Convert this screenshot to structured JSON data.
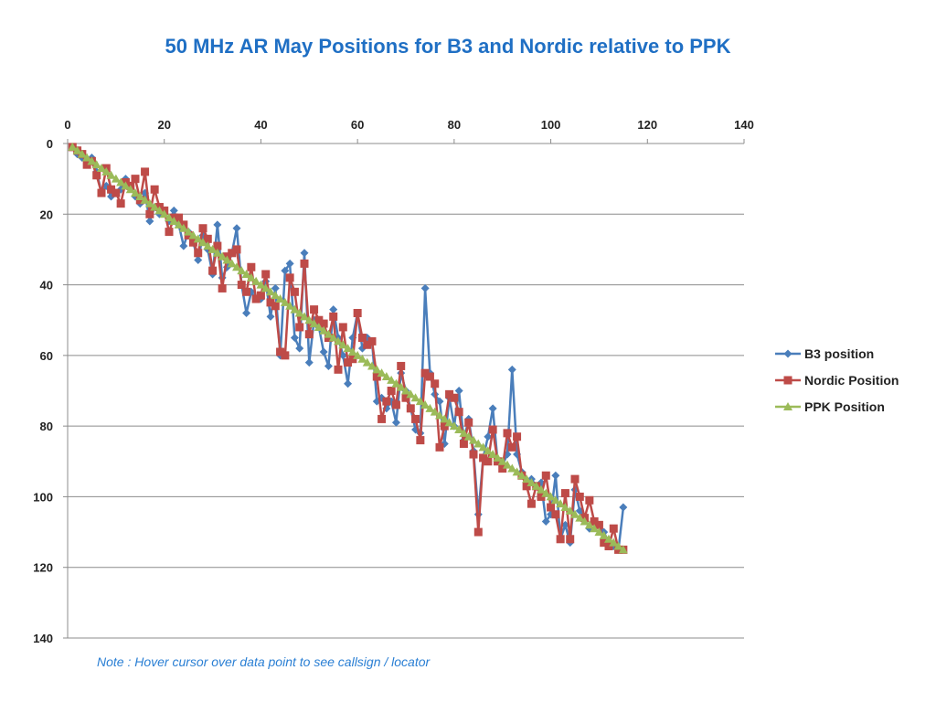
{
  "chart_data": {
    "type": "line",
    "title": "50 MHz AR May Positions for B3 and Nordic relative to PPK",
    "note": "Note : Hover cursor over data point to see callsign / locator",
    "xlabel": "",
    "ylabel": "",
    "xlim": [
      0,
      140
    ],
    "ylim": [
      0,
      140
    ],
    "y_reversed": true,
    "x_axis_position": "top",
    "x_ticks": [
      0,
      20,
      40,
      60,
      80,
      100,
      120,
      140
    ],
    "y_ticks": [
      0,
      20,
      40,
      60,
      80,
      100,
      120,
      140
    ],
    "grid": "horizontal",
    "legend_placement": "right",
    "x": [
      1,
      2,
      3,
      4,
      5,
      6,
      7,
      8,
      9,
      10,
      11,
      12,
      13,
      14,
      15,
      16,
      17,
      18,
      19,
      20,
      21,
      22,
      23,
      24,
      25,
      26,
      27,
      28,
      29,
      30,
      31,
      32,
      33,
      34,
      35,
      36,
      37,
      38,
      39,
      40,
      41,
      42,
      43,
      44,
      45,
      46,
      47,
      48,
      49,
      50,
      51,
      52,
      53,
      54,
      55,
      56,
      57,
      58,
      59,
      60,
      61,
      62,
      63,
      64,
      65,
      66,
      67,
      68,
      69,
      70,
      71,
      72,
      73,
      74,
      75,
      76,
      77,
      78,
      79,
      80,
      81,
      82,
      83,
      84,
      85,
      86,
      87,
      88,
      89,
      90,
      91,
      92,
      93,
      94,
      95,
      96,
      97,
      98,
      99,
      100,
      101,
      102,
      103,
      104,
      105,
      106,
      107,
      108,
      109,
      110,
      111,
      112,
      113,
      114,
      115
    ],
    "series": [
      {
        "name": "B3 position",
        "color": "#4a7ebb",
        "marker": "diamond",
        "values": [
          1,
          3,
          4,
          5,
          4,
          8,
          14,
          12,
          15,
          14,
          13,
          10,
          12,
          15,
          17,
          14,
          22,
          18,
          20,
          19,
          22,
          19,
          23,
          29,
          25,
          28,
          33,
          26,
          30,
          37,
          23,
          38,
          35,
          31,
          24,
          40,
          48,
          42,
          44,
          44,
          39,
          49,
          41,
          60,
          36,
          34,
          55,
          58,
          31,
          62,
          50,
          52,
          59,
          63,
          47,
          55,
          60,
          68,
          55,
          48,
          58,
          55,
          56,
          73,
          72,
          75,
          73,
          79,
          65,
          70,
          75,
          81,
          82,
          41,
          65,
          71,
          73,
          85,
          72,
          80,
          70,
          84,
          78,
          87,
          105,
          89,
          83,
          75,
          90,
          91,
          88,
          64,
          88,
          93,
          96,
          95,
          97,
          96,
          107,
          105,
          94,
          112,
          108,
          113,
          98,
          104,
          106,
          109,
          107,
          108,
          110,
          113,
          114,
          115,
          103
        ]
      },
      {
        "name": "Nordic Position",
        "color": "#be4b48",
        "marker": "square",
        "values": [
          1,
          2,
          3,
          6,
          5,
          9,
          14,
          7,
          13,
          14,
          17,
          11,
          12,
          10,
          16,
          8,
          20,
          13,
          18,
          19,
          25,
          21,
          21,
          23,
          26,
          28,
          31,
          24,
          27,
          36,
          29,
          41,
          32,
          31,
          30,
          40,
          42,
          35,
          44,
          43,
          37,
          45,
          46,
          59,
          60,
          38,
          42,
          52,
          34,
          54,
          47,
          50,
          51,
          55,
          49,
          64,
          52,
          62,
          61,
          48,
          55,
          57,
          56,
          66,
          78,
          73,
          70,
          74,
          63,
          72,
          75,
          78,
          84,
          65,
          66,
          68,
          86,
          80,
          71,
          72,
          76,
          85,
          79,
          88,
          110,
          89,
          90,
          81,
          90,
          92,
          82,
          86,
          83,
          94,
          97,
          102,
          97,
          100,
          94,
          103,
          105,
          112,
          99,
          112,
          95,
          100,
          106,
          101,
          107,
          108,
          113,
          114,
          109,
          115,
          115
        ]
      },
      {
        "name": "PPK Position",
        "color": "#9bbb59",
        "marker": "triangle",
        "values": [
          1,
          2,
          3,
          4,
          5,
          6,
          7,
          8,
          9,
          10,
          11,
          12,
          13,
          14,
          15,
          16,
          17,
          18,
          19,
          20,
          21,
          22,
          23,
          24,
          25,
          26,
          27,
          28,
          29,
          30,
          31,
          32,
          33,
          34,
          35,
          36,
          37,
          38,
          39,
          40,
          41,
          42,
          43,
          44,
          45,
          46,
          47,
          48,
          49,
          50,
          51,
          52,
          53,
          54,
          55,
          56,
          57,
          58,
          59,
          60,
          61,
          62,
          63,
          64,
          65,
          66,
          67,
          68,
          69,
          70,
          71,
          72,
          73,
          74,
          75,
          76,
          77,
          78,
          79,
          80,
          81,
          82,
          83,
          84,
          85,
          86,
          87,
          88,
          89,
          90,
          91,
          92,
          93,
          94,
          95,
          96,
          97,
          98,
          99,
          100,
          101,
          102,
          103,
          104,
          105,
          106,
          107,
          108,
          109,
          110,
          111,
          112,
          113,
          114,
          115
        ]
      }
    ]
  }
}
